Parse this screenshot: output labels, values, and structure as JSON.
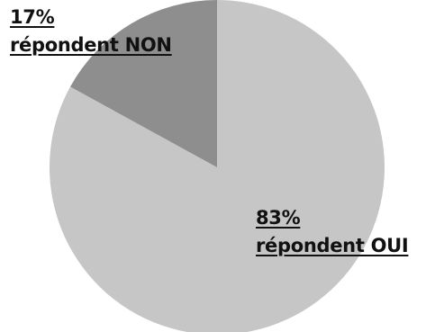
{
  "chart_data": {
    "type": "pie",
    "slices": [
      {
        "key": "oui",
        "value": 83,
        "percent_label": "83%",
        "text": "répondent OUI",
        "color": "#c6c6c6"
      },
      {
        "key": "non",
        "value": 17,
        "percent_label": "17%",
        "text": "répondent NON",
        "color": "#8e8e8e"
      }
    ]
  }
}
